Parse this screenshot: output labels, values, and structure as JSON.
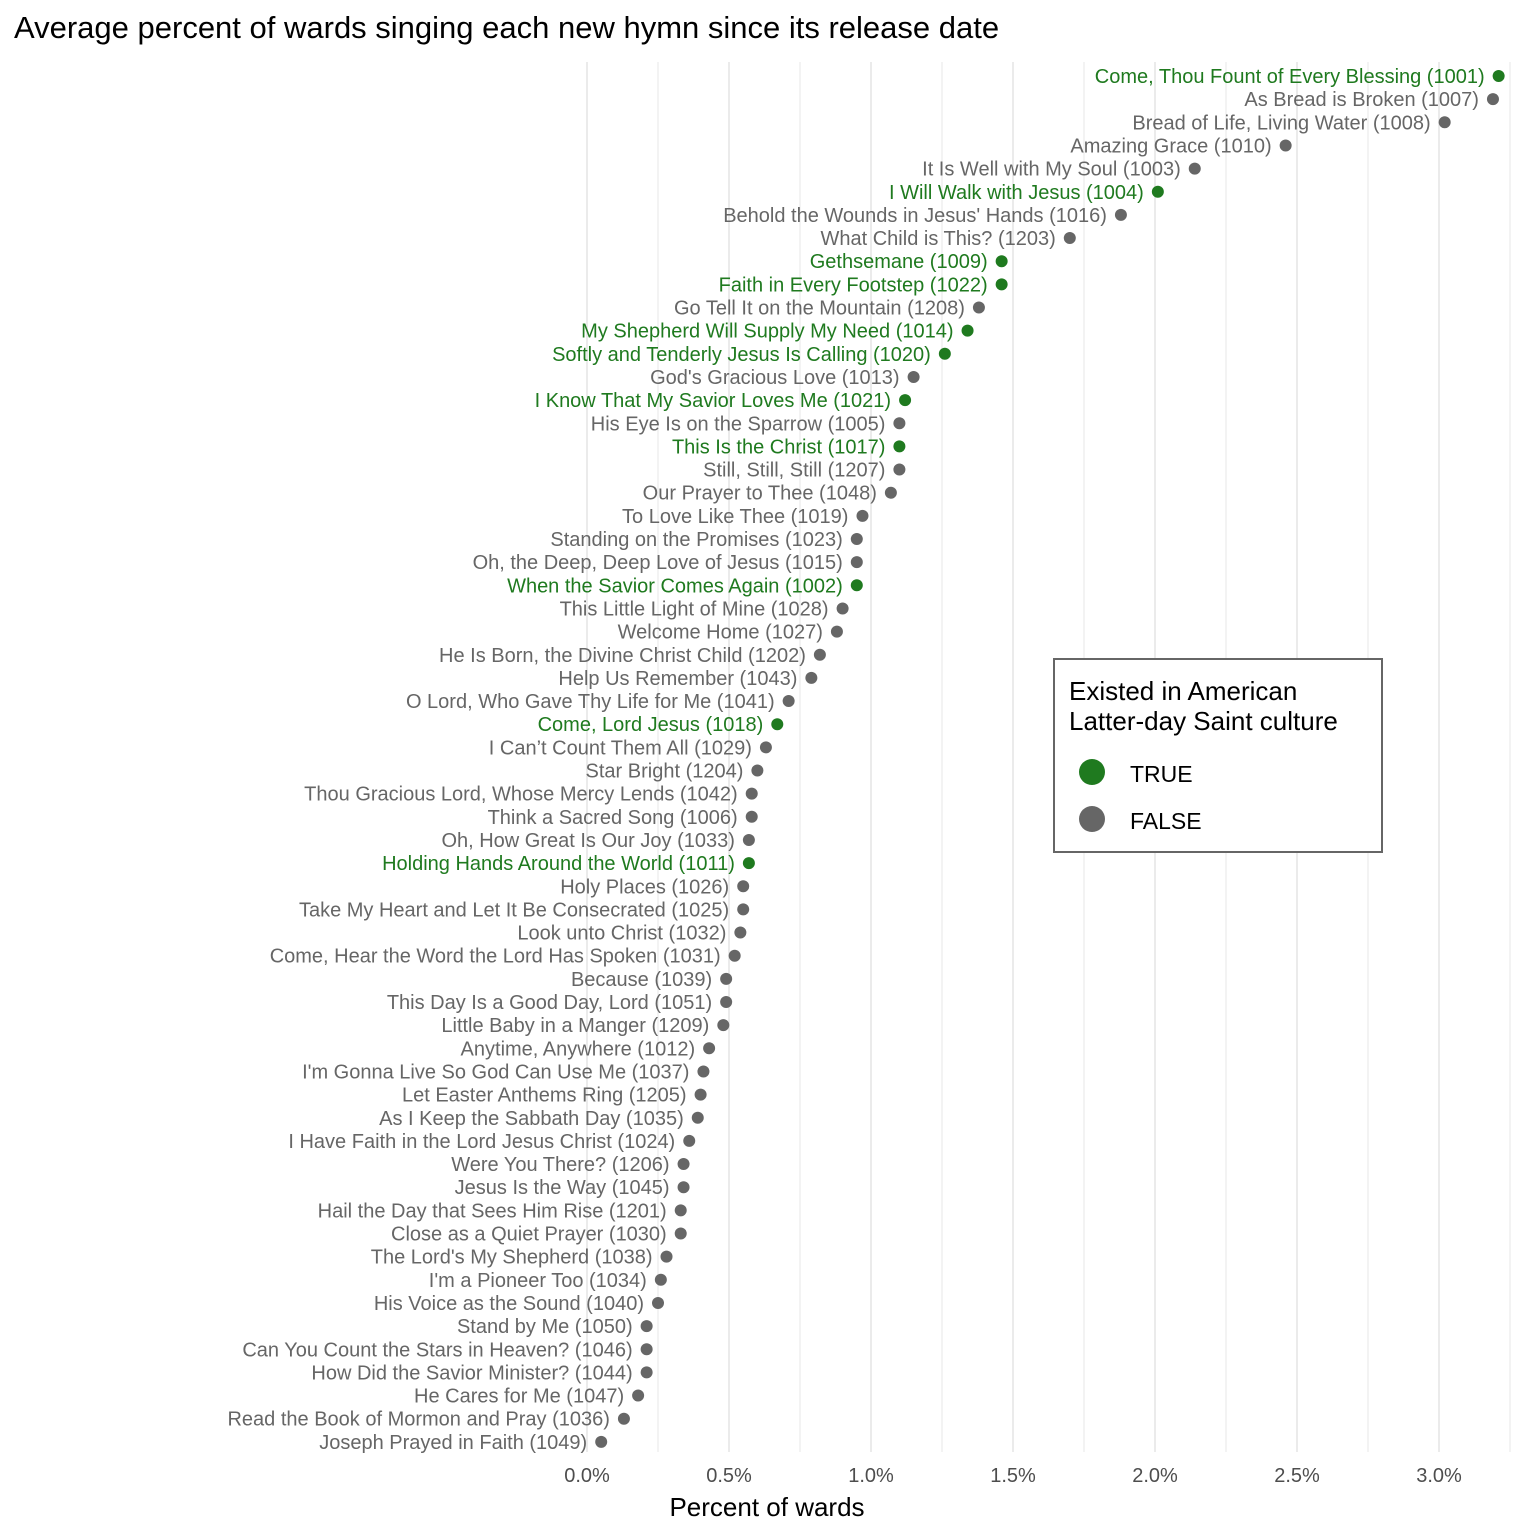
{
  "chart_data": {
    "type": "scatter",
    "title": "Average percent of wards singing each new hymn since its release date",
    "xlabel": "Percent of wards",
    "ylabel": "",
    "xlim": [
      -0.02,
      3.22
    ],
    "x_ticks": [
      {
        "value": 0.0,
        "label": "0.0%"
      },
      {
        "value": 0.5,
        "label": "0.5%"
      },
      {
        "value": 1.0,
        "label": "1.0%"
      },
      {
        "value": 1.5,
        "label": "1.5%"
      },
      {
        "value": 2.0,
        "label": "2.0%"
      },
      {
        "value": 2.5,
        "label": "2.5%"
      },
      {
        "value": 3.0,
        "label": "3.0%"
      }
    ],
    "grid": true,
    "legend": {
      "title": "Existed in American Latter-day Saint culture",
      "placement": "right-middle",
      "entries": [
        {
          "label": "TRUE",
          "color": "#1f7a1f"
        },
        {
          "label": "FALSE",
          "color": "#666666"
        }
      ]
    },
    "colors": {
      "true": "#1f7a1f",
      "false": "#666666"
    },
    "points": [
      {
        "label": "Come, Thou Fount of Every Blessing (1001)",
        "x": 3.21,
        "existed": true
      },
      {
        "label": "As Bread is Broken (1007)",
        "x": 3.19,
        "existed": false
      },
      {
        "label": "Bread of Life, Living Water (1008)",
        "x": 3.02,
        "existed": false
      },
      {
        "label": "Amazing Grace (1010)",
        "x": 2.46,
        "existed": false
      },
      {
        "label": "It Is Well with My Soul (1003)",
        "x": 2.14,
        "existed": false
      },
      {
        "label": "I Will Walk with Jesus (1004)",
        "x": 2.01,
        "existed": true
      },
      {
        "label": "Behold the Wounds in Jesus' Hands (1016)",
        "x": 1.88,
        "existed": false
      },
      {
        "label": "What Child is This? (1203)",
        "x": 1.7,
        "existed": false
      },
      {
        "label": "Gethsemane (1009)",
        "x": 1.46,
        "existed": true
      },
      {
        "label": "Faith in Every Footstep (1022)",
        "x": 1.46,
        "existed": true
      },
      {
        "label": "Go Tell It on the Mountain (1208)",
        "x": 1.38,
        "existed": false
      },
      {
        "label": "My Shepherd Will Supply My Need (1014)",
        "x": 1.34,
        "existed": true
      },
      {
        "label": "Softly and Tenderly Jesus Is Calling (1020)",
        "x": 1.26,
        "existed": true
      },
      {
        "label": "God's Gracious Love (1013)",
        "x": 1.15,
        "existed": false
      },
      {
        "label": "I Know That My Savior Loves Me (1021)",
        "x": 1.12,
        "existed": true
      },
      {
        "label": "His Eye Is on the Sparrow (1005)",
        "x": 1.1,
        "existed": false
      },
      {
        "label": "This Is the Christ (1017)",
        "x": 1.1,
        "existed": true
      },
      {
        "label": "Still, Still, Still (1207)",
        "x": 1.1,
        "existed": false
      },
      {
        "label": "Our Prayer to Thee (1048)",
        "x": 1.07,
        "existed": false
      },
      {
        "label": "To Love Like Thee (1019)",
        "x": 0.97,
        "existed": false
      },
      {
        "label": "Standing on the Promises (1023)",
        "x": 0.95,
        "existed": false
      },
      {
        "label": "Oh, the Deep, Deep Love of Jesus (1015)",
        "x": 0.95,
        "existed": false
      },
      {
        "label": "When the Savior Comes Again (1002)",
        "x": 0.95,
        "existed": true
      },
      {
        "label": "This Little Light of Mine (1028)",
        "x": 0.9,
        "existed": false
      },
      {
        "label": "Welcome Home (1027)",
        "x": 0.88,
        "existed": false
      },
      {
        "label": "He Is Born, the Divine Christ Child (1202)",
        "x": 0.82,
        "existed": false
      },
      {
        "label": "Help Us Remember (1043)",
        "x": 0.79,
        "existed": false
      },
      {
        "label": "O Lord, Who Gave Thy Life for Me (1041)",
        "x": 0.71,
        "existed": false
      },
      {
        "label": "Come, Lord Jesus (1018)",
        "x": 0.67,
        "existed": true
      },
      {
        "label": "I Can’t Count Them All (1029)",
        "x": 0.63,
        "existed": false
      },
      {
        "label": "Star Bright (1204)",
        "x": 0.6,
        "existed": false
      },
      {
        "label": "Thou Gracious Lord, Whose Mercy Lends (1042)",
        "x": 0.58,
        "existed": false
      },
      {
        "label": "Think a Sacred Song (1006)",
        "x": 0.58,
        "existed": false
      },
      {
        "label": "Oh, How Great Is Our Joy (1033)",
        "x": 0.57,
        "existed": false
      },
      {
        "label": "Holding Hands Around the World (1011)",
        "x": 0.57,
        "existed": true
      },
      {
        "label": "Holy Places (1026)",
        "x": 0.55,
        "existed": false
      },
      {
        "label": "Take My Heart and Let It Be Consecrated (1025)",
        "x": 0.55,
        "existed": false
      },
      {
        "label": "Look unto Christ (1032)",
        "x": 0.54,
        "existed": false
      },
      {
        "label": "Come, Hear the Word the Lord Has Spoken (1031)",
        "x": 0.52,
        "existed": false
      },
      {
        "label": "Because (1039)",
        "x": 0.49,
        "existed": false
      },
      {
        "label": "This Day Is a Good Day, Lord (1051)",
        "x": 0.49,
        "existed": false
      },
      {
        "label": "Little Baby in a Manger (1209)",
        "x": 0.48,
        "existed": false
      },
      {
        "label": "Anytime, Anywhere (1012)",
        "x": 0.43,
        "existed": false
      },
      {
        "label": "I'm Gonna Live So God Can Use Me (1037)",
        "x": 0.41,
        "existed": false
      },
      {
        "label": "Let Easter Anthems Ring (1205)",
        "x": 0.4,
        "existed": false
      },
      {
        "label": "As I Keep the Sabbath Day (1035)",
        "x": 0.39,
        "existed": false
      },
      {
        "label": "I Have Faith in the Lord Jesus Christ (1024)",
        "x": 0.36,
        "existed": false
      },
      {
        "label": "Were You There? (1206)",
        "x": 0.34,
        "existed": false
      },
      {
        "label": "Jesus Is the Way (1045)",
        "x": 0.34,
        "existed": false
      },
      {
        "label": "Hail the Day that Sees Him Rise (1201)",
        "x": 0.33,
        "existed": false
      },
      {
        "label": "Close as a Quiet Prayer (1030)",
        "x": 0.33,
        "existed": false
      },
      {
        "label": "The Lord's My Shepherd (1038)",
        "x": 0.28,
        "existed": false
      },
      {
        "label": "I'm a Pioneer Too (1034)",
        "x": 0.26,
        "existed": false
      },
      {
        "label": "His Voice as the Sound (1040)",
        "x": 0.25,
        "existed": false
      },
      {
        "label": "Stand by Me (1050)",
        "x": 0.21,
        "existed": false
      },
      {
        "label": "Can You Count the Stars in Heaven? (1046)",
        "x": 0.21,
        "existed": false
      },
      {
        "label": "How Did the Savior Minister? (1044)",
        "x": 0.21,
        "existed": false
      },
      {
        "label": "He Cares for Me (1047)",
        "x": 0.18,
        "existed": false
      },
      {
        "label": "Read the Book of Mormon and Pray (1036)",
        "x": 0.13,
        "existed": false
      },
      {
        "label": "Joseph Prayed in Faith (1049)",
        "x": 0.05,
        "existed": false
      }
    ]
  }
}
